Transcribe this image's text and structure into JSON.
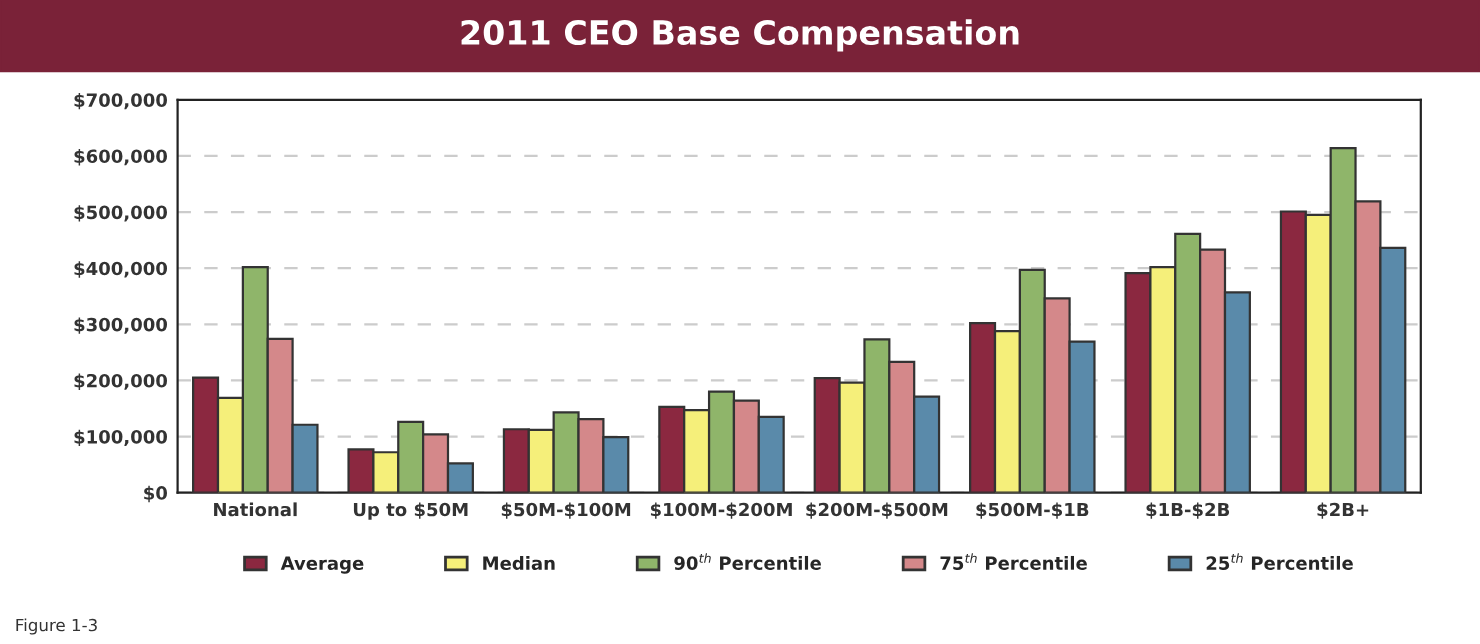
{
  "chart_data": {
    "type": "bar",
    "title": "2011 CEO Base Compensation",
    "categories": [
      "National",
      "Up to $50M",
      "$50M-$100M",
      "$100M-$200M",
      "$200M-$500M",
      "$500M-$1B",
      "$1B-$2B",
      "$2B+"
    ],
    "series": [
      {
        "name": "Average",
        "color": "#8b2840",
        "values": [
          205000,
          77000,
          113000,
          153000,
          204000,
          302000,
          391000,
          501000
        ]
      },
      {
        "name": "Median",
        "color": "#f5ef7a",
        "values": [
          169000,
          72000,
          112000,
          147000,
          196000,
          288000,
          402000,
          495000
        ]
      },
      {
        "name": "90$^{th}$ Percentile",
        "color": "#8fb56a",
        "values": [
          402000,
          126000,
          143000,
          180000,
          273000,
          397000,
          461000,
          614000
        ]
      },
      {
        "name": "75$^{th}$ Percentile",
        "color": "#d4888a",
        "values": [
          274000,
          104000,
          131000,
          164000,
          233000,
          346000,
          433000,
          519000
        ]
      },
      {
        "name": "25$^{th}$ Percentile",
        "color": "#5a8aaa",
        "values": [
          121000,
          52000,
          99000,
          135000,
          171000,
          269000,
          357000,
          436000
        ]
      }
    ],
    "ylim": [
      0,
      700000
    ],
    "yticks": [
      {
        "value": 0,
        "label": "$0"
      },
      {
        "value": 100000,
        "label": "$100,000"
      },
      {
        "value": 200000,
        "label": "$200,000"
      },
      {
        "value": 300000,
        "label": "$300,000"
      },
      {
        "value": 400000,
        "label": "$400,000"
      },
      {
        "value": 500000,
        "label": "$500,000"
      },
      {
        "value": 600000,
        "label": "$600,000"
      },
      {
        "value": 700000,
        "label": "$700,000"
      }
    ],
    "grid": "y",
    "legend": "bottom",
    "annotations": [
      "Figure 1-3"
    ]
  }
}
